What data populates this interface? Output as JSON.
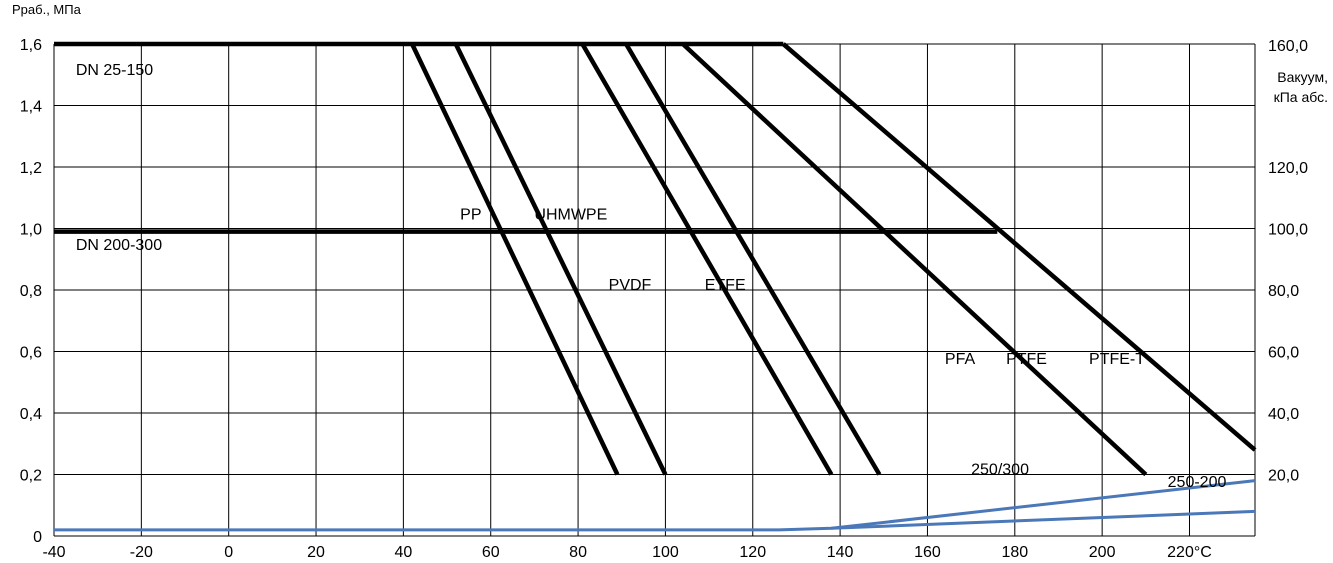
{
  "chart_data": {
    "type": "line",
    "y_label": "Рраб., МПа",
    "y2_label_line1": "Вакуум,",
    "y2_label_line2": "кПа абс.",
    "x_tick_labels": [
      "-40",
      "-20",
      "0",
      "20",
      "40",
      "60",
      "80",
      "100",
      "120",
      "140",
      "160",
      "180",
      "200",
      "220°C"
    ],
    "x_ticks": [
      -40,
      -20,
      0,
      20,
      40,
      60,
      80,
      100,
      120,
      140,
      160,
      180,
      200,
      220
    ],
    "xlim": [
      -40,
      235
    ],
    "y_ticks": [
      0,
      0.2,
      0.4,
      0.6,
      0.8,
      1.0,
      1.2,
      1.4,
      1.6
    ],
    "y_tick_labels": [
      "0",
      "0,2",
      "0,4",
      "0,6",
      "0,8",
      "1,0",
      "1,2",
      "1,4",
      "1,6"
    ],
    "ylim": [
      0,
      1.6
    ],
    "y2_ticks": [
      0.2,
      0.4,
      0.6,
      0.8,
      1.0,
      1.2,
      1.6
    ],
    "y2_tick_labels": [
      "20,0",
      "40,0",
      "60,0",
      "80,0",
      "100,0",
      "120,0",
      "160,0"
    ],
    "grid": true,
    "colors": {
      "pressure": "#000000",
      "vacuum": "#4a78b8",
      "grid": "#000000"
    },
    "series": [
      {
        "kind": "pressure",
        "name": "DN 25-150",
        "points": [
          [
            -40,
            1.6
          ],
          [
            127,
            1.6
          ]
        ]
      },
      {
        "kind": "pressure",
        "name": "DN 200-300",
        "points": [
          [
            -40,
            0.99
          ],
          [
            176,
            0.99
          ]
        ]
      },
      {
        "kind": "pressure",
        "name": "PP",
        "points": [
          [
            42,
            1.6
          ],
          [
            89,
            0.2
          ]
        ]
      },
      {
        "kind": "pressure",
        "name": "UHMWPE",
        "points": [
          [
            52,
            1.6
          ],
          [
            100,
            0.2
          ]
        ]
      },
      {
        "kind": "pressure",
        "name": "PVDF",
        "points": [
          [
            81,
            1.6
          ],
          [
            138,
            0.2
          ]
        ]
      },
      {
        "kind": "pressure",
        "name": "ETFE",
        "points": [
          [
            91,
            1.6
          ],
          [
            149,
            0.2
          ]
        ]
      },
      {
        "kind": "pressure",
        "name": "PFA",
        "points": [
          [
            104,
            1.6
          ],
          [
            210,
            0.2
          ]
        ]
      },
      {
        "kind": "pressure",
        "name": "PTFE-T",
        "points": [
          [
            127,
            1.6
          ],
          [
            235,
            0.28
          ]
        ]
      },
      {
        "kind": "vacuum",
        "name": "250/300",
        "points": [
          [
            -40,
            0.02
          ],
          [
            126,
            0.02
          ],
          [
            138,
            0.025
          ],
          [
            235,
            0.18
          ]
        ]
      },
      {
        "kind": "vacuum",
        "name": "250-200",
        "points": [
          [
            138,
            0.025
          ],
          [
            235,
            0.08
          ]
        ]
      }
    ],
    "annotations": [
      {
        "text": "DN 25-150",
        "x": -35,
        "y": 1.5
      },
      {
        "text": "DN 200-300",
        "x": -35,
        "y": 0.93
      },
      {
        "text": "PP",
        "x": 53,
        "y": 1.03
      },
      {
        "text": "UHMWPE",
        "x": 70,
        "y": 1.03
      },
      {
        "text": "PVDF",
        "x": 87,
        "y": 0.8
      },
      {
        "text": "ETFE",
        "x": 109,
        "y": 0.8
      },
      {
        "text": "PFA",
        "x": 164,
        "y": 0.56
      },
      {
        "text": "PTFE",
        "x": 178,
        "y": 0.56
      },
      {
        "text": "PTFE-T",
        "x": 197,
        "y": 0.56
      },
      {
        "text": "250/300",
        "x": 170,
        "y": 0.2
      },
      {
        "text": "250-200",
        "x": 215,
        "y": 0.16
      }
    ]
  }
}
